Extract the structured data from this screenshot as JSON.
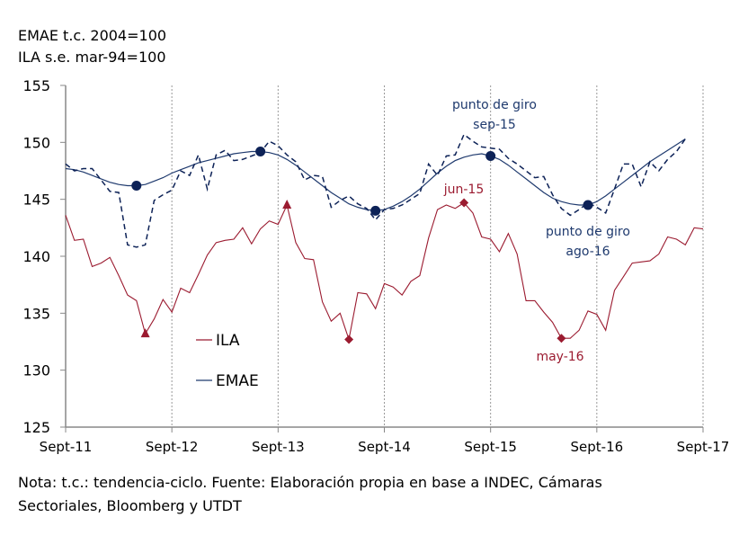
{
  "header": {
    "line1": "EMAE t.c. 2004=100",
    "line2": "ILA s.e. mar-94=100"
  },
  "footnote": {
    "line1": "Nota: t.c.: tendencia-ciclo.  Fuente: Elaboración propia en base a INDEC, Cámaras",
    "line2": "Sectoriales,  Bloomberg y UTDT"
  },
  "chart_data": {
    "type": "line",
    "x_start": "Sept-11",
    "frequency": "monthly",
    "x_tick_labels": [
      "Sept-11",
      "Sept-12",
      "Sept-13",
      "Sept-14",
      "Sept-15",
      "Sept-16",
      "Sept-17"
    ],
    "ylim": [
      125,
      155
    ],
    "y_ticks": [
      125,
      130,
      135,
      140,
      145,
      150,
      155
    ],
    "grid": "vertical dashed at yearly ticks",
    "legend": {
      "placement": "center-left",
      "entries": [
        "ILA",
        "EMAE"
      ]
    },
    "colors": {
      "ILA": "#9b1b30",
      "EMAE": "#1f3a6e",
      "EMAE_markers": "#0d2257"
    },
    "series": [
      {
        "name": "ILA",
        "style": "solid",
        "values": [
          143.6,
          141.4,
          141.5,
          139.1,
          139.4,
          139.9,
          138.3,
          136.6,
          136.1,
          133.2,
          134.5,
          136.2,
          135.1,
          137.2,
          136.8,
          138.4,
          140.1,
          141.2,
          141.4,
          141.5,
          142.5,
          141.1,
          142.4,
          143.1,
          142.8,
          144.5,
          141.2,
          139.8,
          139.7,
          136.0,
          134.3,
          135.0,
          132.7,
          136.8,
          136.7,
          135.4,
          137.6,
          137.3,
          136.6,
          137.8,
          138.3,
          141.6,
          144.1,
          144.5,
          144.2,
          144.7,
          143.8,
          141.7,
          141.5,
          140.4,
          142.0,
          140.2,
          136.1,
          136.1,
          135.1,
          134.2,
          132.8,
          132.8,
          133.5,
          135.2,
          134.9,
          133.5,
          137.0,
          138.2,
          139.4,
          139.5,
          139.6,
          140.2,
          141.7,
          141.5,
          141.0,
          142.5,
          142.4
        ],
        "markers": [
          {
            "index": 9,
            "shape": "triangle"
          },
          {
            "index": 25,
            "shape": "triangle"
          },
          {
            "index": 32,
            "shape": "diamond"
          },
          {
            "index": 45,
            "shape": "diamond"
          },
          {
            "index": 56,
            "shape": "diamond"
          }
        ]
      },
      {
        "name": "EMAE",
        "style": "solid",
        "values": [
          147.7,
          147.6,
          147.4,
          147.1,
          146.8,
          146.5,
          146.3,
          146.2,
          146.2,
          146.3,
          146.6,
          146.9,
          147.3,
          147.6,
          147.9,
          148.2,
          148.4,
          148.6,
          148.8,
          149.0,
          149.1,
          149.2,
          149.2,
          149.1,
          148.9,
          148.5,
          148.0,
          147.4,
          146.8,
          146.2,
          145.6,
          145.1,
          144.6,
          144.3,
          144.1,
          144.0,
          144.1,
          144.4,
          144.8,
          145.3,
          145.9,
          146.6,
          147.3,
          147.9,
          148.4,
          148.7,
          148.9,
          149.0,
          148.8,
          148.5,
          148.0,
          147.4,
          146.8,
          146.2,
          145.6,
          145.1,
          144.8,
          144.6,
          144.5,
          144.5,
          144.8,
          145.3,
          145.9,
          146.5,
          147.1,
          147.7,
          148.3,
          148.8,
          149.3,
          149.8,
          150.3
        ],
        "markers": [
          {
            "index": 8,
            "shape": "circle"
          },
          {
            "index": 22,
            "shape": "circle"
          },
          {
            "index": 35,
            "shape": "circle"
          },
          {
            "index": 48,
            "shape": "circle"
          },
          {
            "index": 59,
            "shape": "circle"
          }
        ]
      },
      {
        "style": "dashed",
        "values": [
          148.1,
          147.5,
          147.7,
          147.7,
          146.7,
          145.7,
          145.6,
          141.0,
          140.8,
          141.0,
          144.9,
          145.4,
          145.8,
          147.5,
          147.1,
          148.9,
          145.9,
          148.9,
          149.3,
          148.4,
          148.5,
          148.8,
          149.1,
          150.1,
          149.7,
          148.9,
          148.3,
          146.7,
          147.1,
          147.0,
          144.3,
          144.9,
          145.3,
          144.6,
          144.2,
          143.2,
          144.1,
          144.2,
          144.5,
          145.0,
          145.5,
          148.1,
          147.1,
          148.8,
          148.9,
          150.7,
          150.1,
          149.6,
          149.5,
          149.4,
          148.6,
          148.1,
          147.5,
          146.9,
          147.0,
          145.4,
          144.2,
          143.6,
          144.1,
          144.7,
          144.3,
          143.8,
          145.9,
          148.1,
          148.1,
          146.1,
          148.3,
          147.5,
          148.5,
          149.2,
          150.3
        ]
      }
    ],
    "annotations": [
      {
        "lines": [
          "punto de giro",
          "sep-15"
        ],
        "series": "EMAE"
      },
      {
        "lines": [
          "jun-15"
        ],
        "series": "ILA"
      },
      {
        "lines": [
          "punto de giro",
          "ago-16"
        ],
        "series": "EMAE"
      },
      {
        "lines": [
          "may-16"
        ],
        "series": "ILA"
      }
    ]
  }
}
